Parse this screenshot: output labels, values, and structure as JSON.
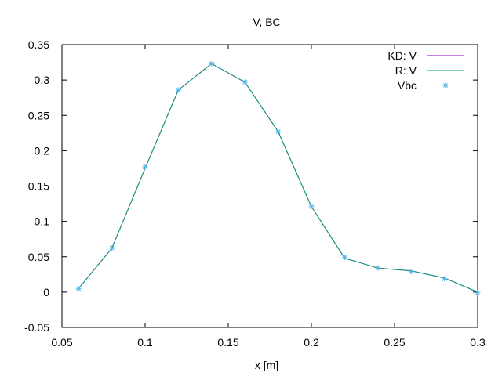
{
  "chart_data": {
    "type": "line",
    "title": "V, BC",
    "xlabel": "x [m]",
    "ylabel": "",
    "xlim": [
      0.05,
      0.3
    ],
    "ylim": [
      -0.05,
      0.35
    ],
    "grid": false,
    "legend_position": "top-right",
    "x_ticks": [
      {
        "value": 0.05,
        "label": "0.05"
      },
      {
        "value": 0.1,
        "label": "0.1"
      },
      {
        "value": 0.15,
        "label": "0.15"
      },
      {
        "value": 0.2,
        "label": "0.2"
      },
      {
        "value": 0.25,
        "label": "0.25"
      },
      {
        "value": 0.3,
        "label": "0.3"
      }
    ],
    "y_ticks": [
      {
        "value": -0.05,
        "label": "-0.05"
      },
      {
        "value": 0,
        "label": "0"
      },
      {
        "value": 0.05,
        "label": "0.05"
      },
      {
        "value": 0.1,
        "label": "0.1"
      },
      {
        "value": 0.15,
        "label": "0.15"
      },
      {
        "value": 0.2,
        "label": "0.2"
      },
      {
        "value": 0.25,
        "label": "0.25"
      },
      {
        "value": 0.3,
        "label": "0.3"
      },
      {
        "value": 0.35,
        "label": "0.35"
      }
    ],
    "x": [
      0.06,
      0.08,
      0.1,
      0.12,
      0.14,
      0.16,
      0.18,
      0.2,
      0.22,
      0.24,
      0.26,
      0.28,
      0.3
    ],
    "series": [
      {
        "name": "KD: V",
        "style": "line",
        "color": "#9400d3",
        "values": [
          0.005,
          0.062,
          0.175,
          0.286,
          0.323,
          0.297,
          0.227,
          0.121,
          0.048,
          0.034,
          0.03,
          0.02,
          0.0
        ]
      },
      {
        "name": "R: V",
        "style": "line",
        "color": "#009e73",
        "values": [
          0.005,
          0.062,
          0.175,
          0.286,
          0.323,
          0.297,
          0.227,
          0.121,
          0.048,
          0.034,
          0.03,
          0.02,
          0.0
        ]
      },
      {
        "name": "Vbc",
        "style": "points",
        "color": "#56b4e9",
        "values": [
          0.005,
          0.062,
          0.177,
          0.286,
          0.323,
          0.297,
          0.227,
          0.121,
          0.049,
          0.034,
          0.029,
          0.019,
          -0.001
        ]
      }
    ]
  }
}
